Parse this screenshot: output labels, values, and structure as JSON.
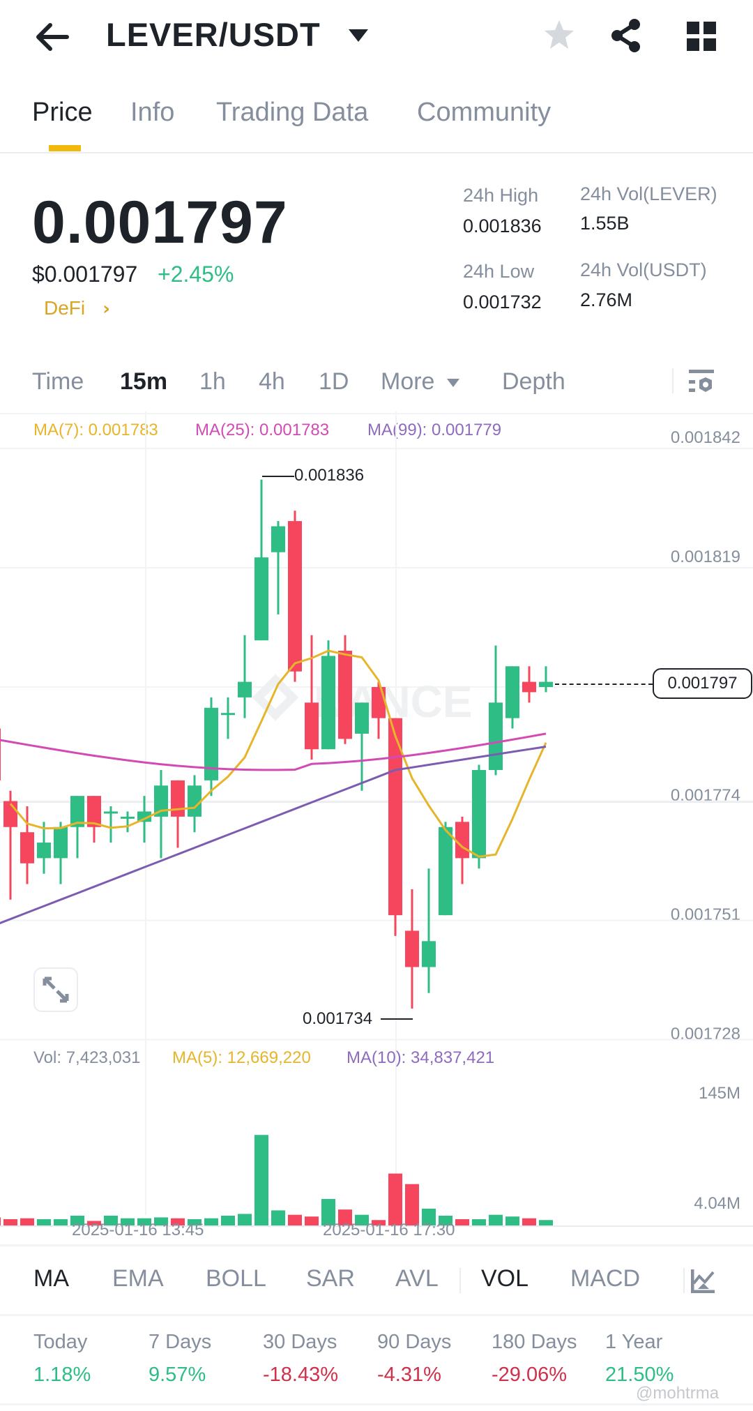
{
  "header": {
    "title": "LEVER/USDT",
    "icons": [
      "back-arrow-icon",
      "dropdown-caret-icon",
      "star-icon",
      "share-icon",
      "grid-menu-icon"
    ]
  },
  "tabs": [
    {
      "label": "Price",
      "active": true
    },
    {
      "label": "Info",
      "active": false
    },
    {
      "label": "Trading Data",
      "active": false
    },
    {
      "label": "Community",
      "active": false
    }
  ],
  "ticker": {
    "last_price": "0.001797",
    "usd_price": "$0.001797",
    "change": "+2.45%",
    "category": "DeFi",
    "high_label": "24h High",
    "high_value": "0.001836",
    "low_label": "24h Low",
    "low_value": "0.001732",
    "vol_base_label": "24h Vol(LEVER)",
    "vol_base_value": "1.55B",
    "vol_quote_label": "24h Vol(USDT)",
    "vol_quote_value": "2.76M"
  },
  "intervals": [
    {
      "label": "Time",
      "active": false
    },
    {
      "label": "15m",
      "active": true
    },
    {
      "label": "1h",
      "active": false
    },
    {
      "label": "4h",
      "active": false
    },
    {
      "label": "1D",
      "active": false
    },
    {
      "label": "More",
      "active": false
    },
    {
      "label": "Depth",
      "active": false
    }
  ],
  "ma_legend": {
    "ma7": "MA(7): 0.001783",
    "ma25": "MA(25): 0.001783",
    "ma99": "MA(99): 0.001779"
  },
  "price_axis": [
    "0.001842",
    "0.001819",
    "0.001796",
    "0.001774",
    "0.001751",
    "0.001728"
  ],
  "current_price_tag": "0.001797",
  "high_marker": "0.001836",
  "low_marker": "0.001734",
  "watermark": "BINANCE",
  "vol_legend": {
    "vol": "Vol: 7,423,031",
    "ma5": "MA(5): 12,669,220",
    "ma10": "MA(10): 34,837,421"
  },
  "vol_axis": [
    "145M",
    "4.04M"
  ],
  "time_axis": [
    "2025-01-16 13:45",
    "2025-01-16 17:30"
  ],
  "indicators": [
    {
      "label": "MA",
      "active": true
    },
    {
      "label": "EMA",
      "active": false
    },
    {
      "label": "BOLL",
      "active": false
    },
    {
      "label": "SAR",
      "active": false
    },
    {
      "label": "AVL",
      "active": false
    },
    {
      "label": "VOL",
      "active": true
    },
    {
      "label": "MACD",
      "active": false
    }
  ],
  "performance": [
    {
      "label": "Today",
      "value": "1.18%",
      "dir": "up"
    },
    {
      "label": "7 Days",
      "value": "9.57%",
      "dir": "up"
    },
    {
      "label": "30 Days",
      "value": "-18.43%",
      "dir": "down"
    },
    {
      "label": "90 Days",
      "value": "-4.31%",
      "dir": "down"
    },
    {
      "label": "180 Days",
      "value": "-29.06%",
      "dir": "down"
    },
    {
      "label": "1 Year",
      "value": "21.50%",
      "dir": "up"
    }
  ],
  "footer_watermark": "@mohtrma",
  "colors": {
    "up": "#2ebd85",
    "down": "#f6465d",
    "accent": "#f0b90b",
    "ma7": "#e6b52a",
    "ma25": "#d24bb4",
    "ma99": "#7b5cb0"
  },
  "chart_data": {
    "type": "candlestick",
    "title": "LEVER/USDT 15m",
    "ylim": [
      0.001728,
      0.001842
    ],
    "y_ticks": [
      0.001842,
      0.001819,
      0.001796,
      0.001774,
      0.001751,
      0.001728
    ],
    "x_ticks": [
      "2025-01-16 13:45",
      "2025-01-16 17:30"
    ],
    "candles": [
      {
        "o": 0.001788,
        "h": 0.00179,
        "l": 0.001761,
        "c": 0.001778
      },
      {
        "o": 0.001774,
        "h": 0.001776,
        "l": 0.001755,
        "c": 0.001769
      },
      {
        "o": 0.001768,
        "h": 0.001773,
        "l": 0.001758,
        "c": 0.001762
      },
      {
        "o": 0.001763,
        "h": 0.00177,
        "l": 0.00176,
        "c": 0.001766
      },
      {
        "o": 0.001763,
        "h": 0.00177,
        "l": 0.001758,
        "c": 0.001769
      },
      {
        "o": 0.001769,
        "h": 0.001775,
        "l": 0.001763,
        "c": 0.001775
      },
      {
        "o": 0.001775,
        "h": 0.001775,
        "l": 0.001766,
        "c": 0.001769
      },
      {
        "o": 0.001772,
        "h": 0.001773,
        "l": 0.001766,
        "c": 0.001772
      },
      {
        "o": 0.001771,
        "h": 0.001772,
        "l": 0.001768,
        "c": 0.001771
      },
      {
        "o": 0.00177,
        "h": 0.001775,
        "l": 0.001766,
        "c": 0.001772
      },
      {
        "o": 0.001771,
        "h": 0.00178,
        "l": 0.001763,
        "c": 0.001777
      },
      {
        "o": 0.001778,
        "h": 0.001778,
        "l": 0.001765,
        "c": 0.001771
      },
      {
        "o": 0.001771,
        "h": 0.001779,
        "l": 0.001768,
        "c": 0.001777
      },
      {
        "o": 0.001778,
        "h": 0.001794,
        "l": 0.001775,
        "c": 0.001792
      },
      {
        "o": 0.001791,
        "h": 0.001794,
        "l": 0.001786,
        "c": 0.001791
      },
      {
        "o": 0.001794,
        "h": 0.001806,
        "l": 0.00179,
        "c": 0.001797
      },
      {
        "o": 0.001805,
        "h": 0.001836,
        "l": 0.001805,
        "c": 0.001821
      },
      {
        "o": 0.001822,
        "h": 0.001828,
        "l": 0.00181,
        "c": 0.001827
      },
      {
        "o": 0.001828,
        "h": 0.00183,
        "l": 0.001797,
        "c": 0.001799
      },
      {
        "o": 0.001793,
        "h": 0.001806,
        "l": 0.001782,
        "c": 0.001784
      },
      {
        "o": 0.001784,
        "h": 0.001805,
        "l": 0.001784,
        "c": 0.001802
      },
      {
        "o": 0.001803,
        "h": 0.001806,
        "l": 0.001785,
        "c": 0.001786
      },
      {
        "o": 0.001787,
        "h": 0.001793,
        "l": 0.001776,
        "c": 0.001793
      },
      {
        "o": 0.001796,
        "h": 0.001797,
        "l": 0.001786,
        "c": 0.00179
      },
      {
        "o": 0.00179,
        "h": 0.00179,
        "l": 0.001748,
        "c": 0.001752
      },
      {
        "o": 0.001749,
        "h": 0.001757,
        "l": 0.001734,
        "c": 0.001742
      },
      {
        "o": 0.001742,
        "h": 0.001761,
        "l": 0.001737,
        "c": 0.001747
      },
      {
        "o": 0.001752,
        "h": 0.00177,
        "l": 0.001752,
        "c": 0.001769
      },
      {
        "o": 0.00177,
        "h": 0.001771,
        "l": 0.001758,
        "c": 0.001763
      },
      {
        "o": 0.001763,
        "h": 0.001781,
        "l": 0.001761,
        "c": 0.00178
      },
      {
        "o": 0.00178,
        "h": 0.001804,
        "l": 0.001779,
        "c": 0.001793
      },
      {
        "o": 0.00179,
        "h": 0.0018,
        "l": 0.001788,
        "c": 0.0018
      },
      {
        "o": 0.001797,
        "h": 0.0018,
        "l": 0.001793,
        "c": 0.001795
      },
      {
        "o": 0.001796,
        "h": 0.0018,
        "l": 0.001795,
        "c": 0.001797
      }
    ],
    "series": [
      {
        "name": "MA(7)",
        "last": 0.001783
      },
      {
        "name": "MA(25)",
        "last": 0.001783
      },
      {
        "name": "MA(99)",
        "last": 0.001779
      }
    ],
    "volume": {
      "ylim_labels": [
        "145M",
        "4.04M"
      ],
      "last": 7423031,
      "ma5_last": 12669220,
      "ma10_last": 34837421
    }
  }
}
